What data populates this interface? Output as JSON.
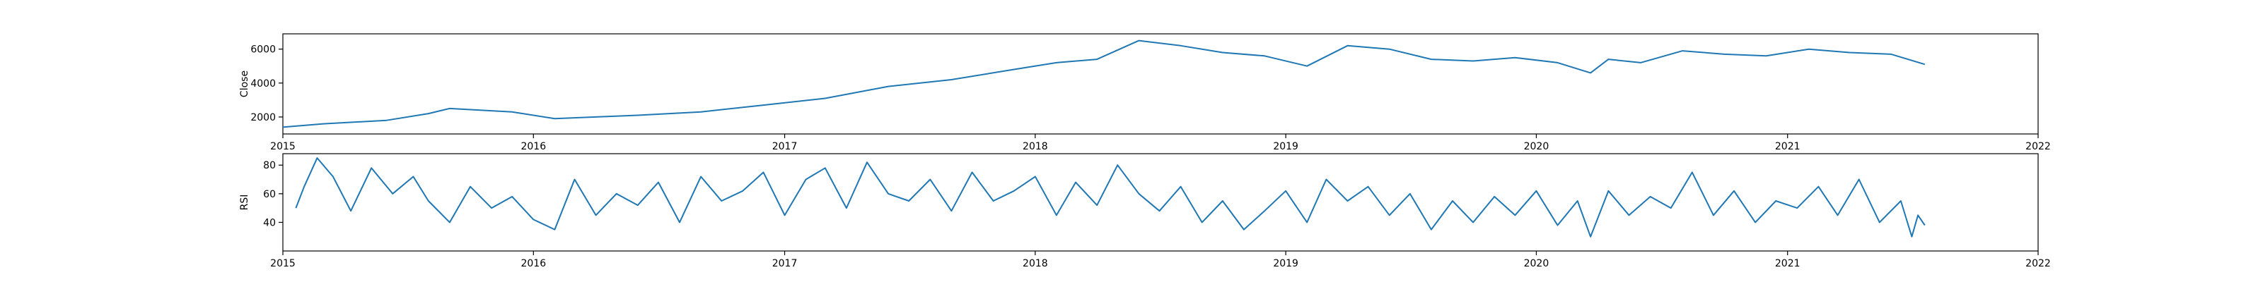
{
  "chart_data": [
    {
      "type": "line",
      "ylabel": "Close",
      "xlabel": "",
      "title": "",
      "x_ticks": [
        "2015",
        "2016",
        "2017",
        "2018",
        "2019",
        "2020",
        "2021",
        "2022"
      ],
      "xlim": [
        "2015-01-01",
        "2022-01-01"
      ],
      "y_ticks": [
        2000,
        4000,
        6000
      ],
      "ylim": [
        1000,
        6900
      ],
      "color": "#1f77b4",
      "grid": false,
      "series": [
        {
          "x": [
            "2015-01-01",
            "2015-03-01",
            "2015-06-01",
            "2015-08-01",
            "2015-09-01",
            "2015-12-01",
            "2016-02-01",
            "2016-04-01",
            "2016-06-01",
            "2016-09-01",
            "2016-12-01",
            "2017-03-01",
            "2017-06-01",
            "2017-09-01",
            "2017-12-01",
            "2018-02-01",
            "2018-04-01",
            "2018-06-01",
            "2018-08-01",
            "2018-10-01",
            "2018-12-01",
            "2019-02-01",
            "2019-04-01",
            "2019-06-01",
            "2019-08-01",
            "2019-10-01",
            "2019-12-01",
            "2020-02-01",
            "2020-03-20",
            "2020-04-15",
            "2020-06-01",
            "2020-08-01",
            "2020-10-01",
            "2020-12-01",
            "2021-02-01",
            "2021-04-01",
            "2021-06-01",
            "2021-07-20"
          ],
          "values": [
            1400,
            1600,
            1800,
            2200,
            2500,
            2300,
            1900,
            2000,
            2100,
            2300,
            2700,
            3100,
            3800,
            4200,
            4800,
            5200,
            5400,
            6500,
            6200,
            5800,
            5600,
            5000,
            6200,
            6000,
            5400,
            5300,
            5500,
            5200,
            4600,
            5400,
            5200,
            5900,
            5700,
            5600,
            6000,
            5800,
            5700,
            5100
          ]
        }
      ]
    },
    {
      "type": "line",
      "ylabel": "RSI",
      "xlabel": "",
      "title": "",
      "x_ticks": [
        "2015",
        "2016",
        "2017",
        "2018",
        "2019",
        "2020",
        "2021",
        "2022"
      ],
      "xlim": [
        "2015-01-01",
        "2022-01-01"
      ],
      "y_ticks": [
        40,
        60,
        80
      ],
      "ylim": [
        20,
        88
      ],
      "color": "#1f77b4",
      "grid": false,
      "series": [
        {
          "x": [
            "2015-01-20",
            "2015-02-01",
            "2015-02-20",
            "2015-03-15",
            "2015-04-10",
            "2015-05-10",
            "2015-06-10",
            "2015-07-10",
            "2015-08-01",
            "2015-09-01",
            "2015-10-01",
            "2015-11-01",
            "2015-12-01",
            "2016-01-01",
            "2016-02-01",
            "2016-03-01",
            "2016-04-01",
            "2016-05-01",
            "2016-06-01",
            "2016-07-01",
            "2016-08-01",
            "2016-09-01",
            "2016-10-01",
            "2016-11-01",
            "2016-12-01",
            "2017-01-01",
            "2017-02-01",
            "2017-03-01",
            "2017-04-01",
            "2017-05-01",
            "2017-06-01",
            "2017-07-01",
            "2017-08-01",
            "2017-09-01",
            "2017-10-01",
            "2017-11-01",
            "2017-12-01",
            "2018-01-01",
            "2018-02-01",
            "2018-03-01",
            "2018-04-01",
            "2018-05-01",
            "2018-06-01",
            "2018-07-01",
            "2018-08-01",
            "2018-09-01",
            "2018-10-01",
            "2018-11-01",
            "2018-12-01",
            "2019-01-01",
            "2019-02-01",
            "2019-03-01",
            "2019-04-01",
            "2019-05-01",
            "2019-06-01",
            "2019-07-01",
            "2019-08-01",
            "2019-09-01",
            "2019-10-01",
            "2019-11-01",
            "2019-12-01",
            "2020-01-01",
            "2020-02-01",
            "2020-03-01",
            "2020-03-20",
            "2020-04-15",
            "2020-05-15",
            "2020-06-15",
            "2020-07-15",
            "2020-08-15",
            "2020-09-15",
            "2020-10-15",
            "2020-11-15",
            "2020-12-15",
            "2021-01-15",
            "2021-02-15",
            "2021-03-15",
            "2021-04-15",
            "2021-05-15",
            "2021-06-15",
            "2021-07-01",
            "2021-07-10",
            "2021-07-20"
          ],
          "values": [
            50,
            65,
            85,
            72,
            48,
            78,
            60,
            72,
            55,
            40,
            65,
            50,
            58,
            42,
            35,
            70,
            45,
            60,
            52,
            68,
            40,
            72,
            55,
            62,
            75,
            45,
            70,
            78,
            50,
            82,
            60,
            55,
            70,
            48,
            75,
            55,
            62,
            72,
            45,
            68,
            52,
            80,
            60,
            48,
            65,
            40,
            55,
            35,
            48,
            62,
            40,
            70,
            55,
            65,
            45,
            60,
            35,
            55,
            40,
            58,
            45,
            62,
            38,
            55,
            30,
            62,
            45,
            58,
            50,
            75,
            45,
            62,
            40,
            55,
            50,
            65,
            45,
            70,
            40,
            55,
            30,
            45,
            38
          ]
        }
      ]
    }
  ]
}
